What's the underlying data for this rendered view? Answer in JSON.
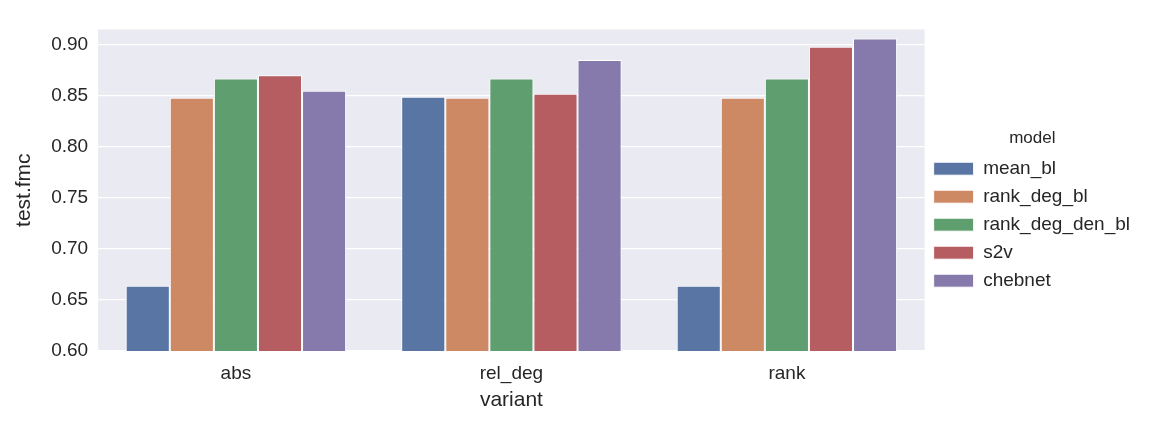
{
  "chart_data": {
    "type": "bar",
    "xlabel": "variant",
    "ylabel": "test.fmc",
    "legend_title": "model",
    "categories": [
      "abs",
      "rel_deg",
      "rank"
    ],
    "series": [
      {
        "name": "mean_bl",
        "color": "#5975a4",
        "values": [
          0.664,
          0.849,
          0.664
        ]
      },
      {
        "name": "rank_deg_bl",
        "color": "#cc8963",
        "values": [
          0.848,
          0.848,
          0.848
        ]
      },
      {
        "name": "rank_deg_den_bl",
        "color": "#5f9e6e",
        "values": [
          0.867,
          0.867,
          0.867
        ]
      },
      {
        "name": "s2v",
        "color": "#b55d60",
        "values": [
          0.87,
          0.852,
          0.898
        ]
      },
      {
        "name": "chebnet",
        "color": "#857aab",
        "values": [
          0.855,
          0.885,
          0.906
        ]
      }
    ],
    "ylim": [
      0.6,
      0.915
    ],
    "yticks": [
      {
        "value": 0.6,
        "label": "0.60"
      },
      0.65,
      {
        "value": 0.7,
        "label": "0.70"
      },
      0.75,
      {
        "value": 0.8,
        "label": "0.80"
      },
      0.85,
      {
        "value": 0.9,
        "label": "0.90"
      }
    ],
    "grid": "y",
    "legend": "right"
  }
}
